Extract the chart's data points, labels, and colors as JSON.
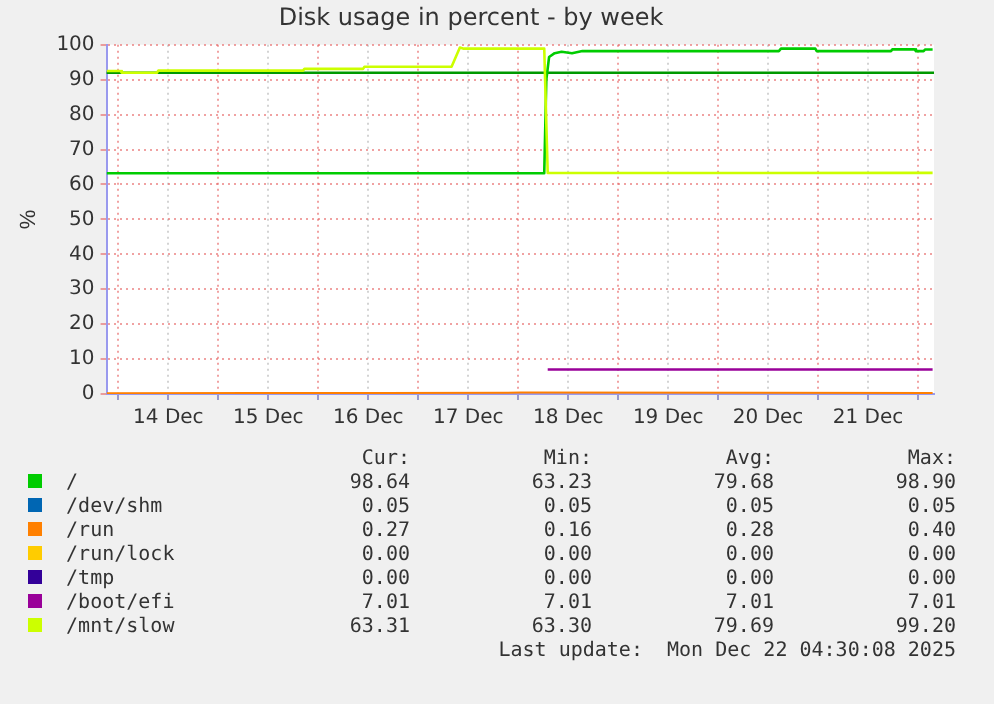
{
  "chart_data": {
    "type": "line",
    "title": "Disk usage in percent - by week",
    "ylabel": "%",
    "xlim": [
      "2025-12-13T21:10",
      "2025-12-22T03:50"
    ],
    "xticks": [
      {
        "value": "2025-12-14T00:00",
        "label": null
      },
      {
        "value": "2025-12-14T12:00",
        "label": "14 Dec"
      },
      {
        "value": "2025-12-15T00:00",
        "label": null
      },
      {
        "value": "2025-12-15T12:00",
        "label": "15 Dec"
      },
      {
        "value": "2025-12-16T00:00",
        "label": null
      },
      {
        "value": "2025-12-16T12:00",
        "label": "16 Dec"
      },
      {
        "value": "2025-12-17T00:00",
        "label": null
      },
      {
        "value": "2025-12-17T12:00",
        "label": "17 Dec"
      },
      {
        "value": "2025-12-18T00:00",
        "label": null
      },
      {
        "value": "2025-12-18T12:00",
        "label": "18 Dec"
      },
      {
        "value": "2025-12-19T00:00",
        "label": null
      },
      {
        "value": "2025-12-19T12:00",
        "label": "19 Dec"
      },
      {
        "value": "2025-12-20T00:00",
        "label": null
      },
      {
        "value": "2025-12-20T12:00",
        "label": "20 Dec"
      },
      {
        "value": "2025-12-21T00:00",
        "label": null
      },
      {
        "value": "2025-12-21T12:00",
        "label": "21 Dec"
      },
      {
        "value": "2025-12-22T00:00",
        "label": null
      }
    ],
    "ylim": [
      0,
      100
    ],
    "yticks": [
      0,
      10,
      20,
      30,
      40,
      50,
      60,
      70,
      80,
      90,
      100
    ],
    "grid": true,
    "legend": "bottom",
    "marker": "none",
    "line_style": "solid",
    "ref_lines": [
      {
        "axis": "y",
        "value": 92,
        "color": "#009900"
      }
    ],
    "series": [
      {
        "name": "/",
        "color": "#00cc00",
        "x": [
          "2025-12-13T21:10",
          "2025-12-18T06:15",
          "2025-12-18T06:45",
          "2025-12-18T07:25",
          "2025-12-18T08:45",
          "2025-12-18T10:25",
          "2025-12-18T12:55",
          "2025-12-18T15:25",
          "2025-12-20T14:35",
          "2025-12-20T15:05",
          "2025-12-20T23:20",
          "2025-12-20T23:40",
          "2025-12-21T17:30",
          "2025-12-21T17:50",
          "2025-12-21T23:10",
          "2025-12-21T23:30",
          "2025-12-22T01:20",
          "2025-12-22T01:40",
          "2025-12-22T03:30"
        ],
        "values": [
          63.23,
          63.23,
          90,
          96.5,
          97.6,
          98.0,
          97.6,
          98.2,
          98.2,
          98.9,
          98.9,
          98.2,
          98.2,
          98.7,
          98.7,
          98.2,
          98.2,
          98.64,
          98.64
        ]
      },
      {
        "name": "/dev/shm",
        "color": "#0066b3",
        "values": [
          null
        ]
      },
      {
        "name": "/run",
        "color": "#ff8000",
        "x": [
          "2025-12-13T21:10",
          "2025-12-16T15:25",
          "2025-12-18T00:30",
          "2025-12-22T03:30"
        ],
        "values": [
          0.2,
          0.3,
          0.4,
          0.3
        ]
      },
      {
        "name": "/run/lock",
        "color": "#ffcc00",
        "values": [
          null
        ]
      },
      {
        "name": "/tmp",
        "color": "#330099",
        "values": [
          null
        ]
      },
      {
        "name": "/boot/efi",
        "color": "#990099",
        "x": [
          "2025-12-18T07:05",
          "2025-12-22T03:30"
        ],
        "values": [
          7.0,
          7.0
        ]
      },
      {
        "name": "/mnt/slow",
        "color": "#ccff00",
        "x": [
          "2025-12-13T21:10",
          "2025-12-14T00:30",
          "2025-12-14T00:50",
          "2025-12-14T09:15",
          "2025-12-14T09:35",
          "2025-12-15T20:20",
          "2025-12-15T20:40",
          "2025-12-16T10:45",
          "2025-12-16T11:05",
          "2025-12-17T08:00",
          "2025-12-17T10:00",
          "2025-12-17T10:55",
          "2025-12-18T06:15",
          "2025-12-18T07:05",
          "2025-12-22T03:30"
        ],
        "values": [
          92.5,
          92.5,
          92.0,
          92.0,
          92.6,
          92.6,
          93.1,
          93.1,
          93.7,
          93.7,
          99.2,
          98.9,
          98.9,
          63.3,
          63.31
        ]
      }
    ],
    "annotations": [
      "Cur:",
      "Min:",
      "Avg:",
      "Max:",
      "98.64",
      "63.23",
      "79.68",
      "98.90",
      "0.05",
      "0.05",
      "0.05",
      "0.05",
      "0.27",
      "0.16",
      "0.28",
      "0.40",
      "0.00",
      "0.00",
      "0.00",
      "0.00",
      "0.00",
      "0.00",
      "0.00",
      "0.00",
      "7.01",
      "7.01",
      "7.01",
      "7.01",
      "63.31",
      "63.30",
      "79.69",
      "99.20",
      "Last update:  Mon Dec 22 04:30:08 2025"
    ]
  }
}
